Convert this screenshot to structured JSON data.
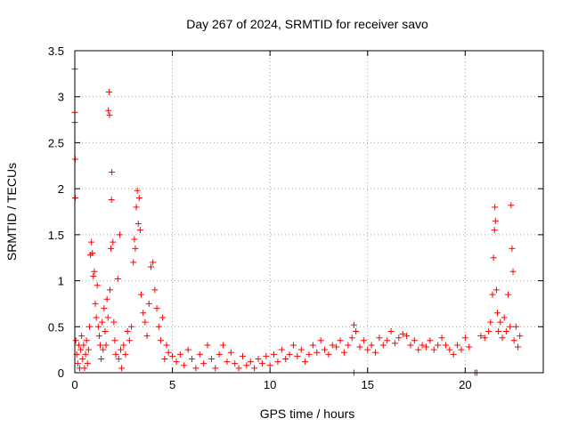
{
  "chart_data": {
    "type": "scatter",
    "title": "Day 267 of 2024, SRMTID for receiver savo",
    "xlabel": "GPS time / hours",
    "ylabel": "SRMTID / TECUs",
    "xlim": [
      0,
      24
    ],
    "ylim": [
      0,
      3.5
    ],
    "x_ticks": [
      0,
      5,
      10,
      15,
      20
    ],
    "x_tick_labels": [
      "0",
      "5",
      "10",
      "15",
      "20"
    ],
    "y_ticks": [
      0,
      0.5,
      1,
      1.5,
      2,
      2.5,
      3,
      3.5
    ],
    "y_tick_labels": [
      "0",
      "0.5",
      "1",
      "1.5",
      "2",
      "2.5",
      "3",
      "3.5"
    ],
    "grid": true,
    "marker": "plus",
    "series": [
      {
        "name": "SRMTID",
        "color": "#ff0000",
        "points": [
          [
            0.0,
            3.3
          ],
          [
            0.0,
            2.83
          ],
          [
            0.0,
            2.72
          ],
          [
            0.02,
            2.32
          ],
          [
            0.02,
            1.9
          ],
          [
            0.05,
            0.35
          ],
          [
            0.1,
            0.2
          ],
          [
            0.15,
            0.1
          ],
          [
            0.2,
            0.3
          ],
          [
            0.25,
            0.05
          ],
          [
            0.3,
            0.25
          ],
          [
            0.35,
            0.4
          ],
          [
            0.4,
            0.15
          ],
          [
            0.45,
            0.3
          ],
          [
            0.5,
            0.05
          ],
          [
            0.55,
            0.2
          ],
          [
            0.6,
            0.35
          ],
          [
            0.65,
            0.1
          ],
          [
            0.7,
            0.25
          ],
          [
            0.75,
            0.5
          ],
          [
            0.8,
            1.28
          ],
          [
            0.85,
            1.42
          ],
          [
            0.9,
            1.3
          ],
          [
            0.95,
            1.05
          ],
          [
            1.0,
            1.1
          ],
          [
            1.05,
            0.75
          ],
          [
            1.1,
            0.6
          ],
          [
            1.15,
            0.95
          ],
          [
            1.2,
            0.5
          ],
          [
            1.25,
            0.4
          ],
          [
            1.3,
            0.3
          ],
          [
            1.35,
            0.15
          ],
          [
            1.4,
            0.55
          ],
          [
            1.45,
            0.25
          ],
          [
            1.5,
            0.7
          ],
          [
            1.55,
            0.45
          ],
          [
            1.6,
            0.3
          ],
          [
            1.65,
            0.8
          ],
          [
            1.7,
            0.6
          ],
          [
            1.72,
            2.85
          ],
          [
            1.75,
            3.05
          ],
          [
            1.78,
            2.8
          ],
          [
            1.8,
            0.9
          ],
          [
            1.85,
            1.35
          ],
          [
            1.88,
            1.88
          ],
          [
            1.9,
            2.18
          ],
          [
            1.95,
            1.42
          ],
          [
            2.0,
            0.55
          ],
          [
            2.05,
            0.35
          ],
          [
            2.1,
            0.2
          ],
          [
            2.2,
            1.02
          ],
          [
            2.25,
            0.15
          ],
          [
            2.3,
            1.5
          ],
          [
            2.35,
            0.25
          ],
          [
            2.4,
            0.05
          ],
          [
            2.5,
            0.3
          ],
          [
            2.6,
            0.2
          ],
          [
            2.7,
            0.45
          ],
          [
            2.8,
            0.35
          ],
          [
            2.9,
            0.5
          ],
          [
            3.0,
            1.2
          ],
          [
            3.05,
            1.45
          ],
          [
            3.1,
            1.35
          ],
          [
            3.15,
            1.8
          ],
          [
            3.2,
            1.98
          ],
          [
            3.25,
            1.62
          ],
          [
            3.3,
            1.9
          ],
          [
            3.35,
            1.55
          ],
          [
            3.4,
            0.85
          ],
          [
            3.5,
            0.65
          ],
          [
            3.6,
            0.55
          ],
          [
            3.7,
            0.4
          ],
          [
            3.8,
            0.75
          ],
          [
            3.9,
            1.15
          ],
          [
            4.0,
            1.2
          ],
          [
            4.1,
            0.9
          ],
          [
            4.2,
            0.7
          ],
          [
            4.3,
            0.5
          ],
          [
            4.4,
            0.35
          ],
          [
            4.5,
            0.6
          ],
          [
            4.6,
            0.15
          ],
          [
            4.7,
            0.3
          ],
          [
            4.8,
            0.22
          ],
          [
            5.0,
            0.18
          ],
          [
            5.2,
            0.12
          ],
          [
            5.4,
            0.2
          ],
          [
            5.6,
            0.08
          ],
          [
            5.8,
            0.25
          ],
          [
            6.0,
            0.15
          ],
          [
            6.2,
            0.05
          ],
          [
            6.4,
            0.2
          ],
          [
            6.6,
            0.1
          ],
          [
            6.8,
            0.3
          ],
          [
            7.0,
            0.15
          ],
          [
            7.2,
            0.05
          ],
          [
            7.4,
            0.2
          ],
          [
            7.6,
            0.3
          ],
          [
            7.8,
            0.12
          ],
          [
            8.0,
            0.22
          ],
          [
            8.2,
            0.1
          ],
          [
            8.4,
            0.05
          ],
          [
            8.6,
            0.18
          ],
          [
            8.8,
            0.08
          ],
          [
            9.0,
            0.12
          ],
          [
            9.2,
            0.05
          ],
          [
            9.4,
            0.15
          ],
          [
            9.6,
            0.1
          ],
          [
            9.8,
            0.18
          ],
          [
            10.0,
            0.08
          ],
          [
            10.2,
            0.2
          ],
          [
            10.4,
            0.12
          ],
          [
            10.6,
            0.25
          ],
          [
            10.8,
            0.15
          ],
          [
            11.0,
            0.2
          ],
          [
            11.2,
            0.3
          ],
          [
            11.4,
            0.18
          ],
          [
            11.6,
            0.25
          ],
          [
            11.8,
            0.12
          ],
          [
            12.0,
            0.2
          ],
          [
            12.2,
            0.3
          ],
          [
            12.4,
            0.22
          ],
          [
            12.6,
            0.35
          ],
          [
            12.8,
            0.25
          ],
          [
            13.0,
            0.2
          ],
          [
            13.2,
            0.3
          ],
          [
            13.4,
            0.28
          ],
          [
            13.6,
            0.35
          ],
          [
            13.8,
            0.22
          ],
          [
            14.0,
            0.3
          ],
          [
            14.2,
            0.38
          ],
          [
            14.3,
            0.52
          ],
          [
            14.4,
            0.45
          ],
          [
            14.3,
            0.0
          ],
          [
            14.6,
            0.28
          ],
          [
            14.8,
            0.35
          ],
          [
            15.0,
            0.25
          ],
          [
            15.2,
            0.3
          ],
          [
            15.4,
            0.22
          ],
          [
            15.6,
            0.38
          ],
          [
            15.8,
            0.3
          ],
          [
            16.0,
            0.35
          ],
          [
            16.2,
            0.45
          ],
          [
            16.4,
            0.32
          ],
          [
            16.6,
            0.38
          ],
          [
            16.8,
            0.42
          ],
          [
            17.0,
            0.4
          ],
          [
            17.2,
            0.3
          ],
          [
            17.4,
            0.35
          ],
          [
            17.6,
            0.25
          ],
          [
            17.8,
            0.3
          ],
          [
            18.0,
            0.28
          ],
          [
            18.2,
            0.35
          ],
          [
            18.4,
            0.25
          ],
          [
            18.6,
            0.3
          ],
          [
            18.8,
            0.38
          ],
          [
            19.0,
            0.3
          ],
          [
            19.2,
            0.25
          ],
          [
            19.4,
            0.2
          ],
          [
            19.6,
            0.3
          ],
          [
            19.8,
            0.25
          ],
          [
            20.0,
            0.38
          ],
          [
            20.2,
            0.28
          ],
          [
            20.5,
            0.0
          ],
          [
            20.6,
            0.0
          ],
          [
            20.8,
            0.4
          ],
          [
            21.0,
            0.38
          ],
          [
            21.2,
            0.45
          ],
          [
            21.3,
            0.55
          ],
          [
            21.4,
            0.85
          ],
          [
            21.45,
            1.25
          ],
          [
            21.5,
            1.55
          ],
          [
            21.52,
            1.8
          ],
          [
            21.55,
            1.65
          ],
          [
            21.6,
            0.9
          ],
          [
            21.65,
            0.65
          ],
          [
            21.7,
            0.45
          ],
          [
            21.8,
            0.55
          ],
          [
            21.9,
            0.38
          ],
          [
            22.0,
            0.6
          ],
          [
            22.1,
            0.45
          ],
          [
            22.2,
            0.85
          ],
          [
            22.3,
            0.5
          ],
          [
            22.35,
            1.82
          ],
          [
            22.4,
            1.35
          ],
          [
            22.45,
            1.1
          ],
          [
            22.5,
            0.35
          ],
          [
            22.6,
            0.5
          ],
          [
            22.7,
            0.28
          ],
          [
            22.8,
            0.4
          ]
        ]
      }
    ]
  }
}
